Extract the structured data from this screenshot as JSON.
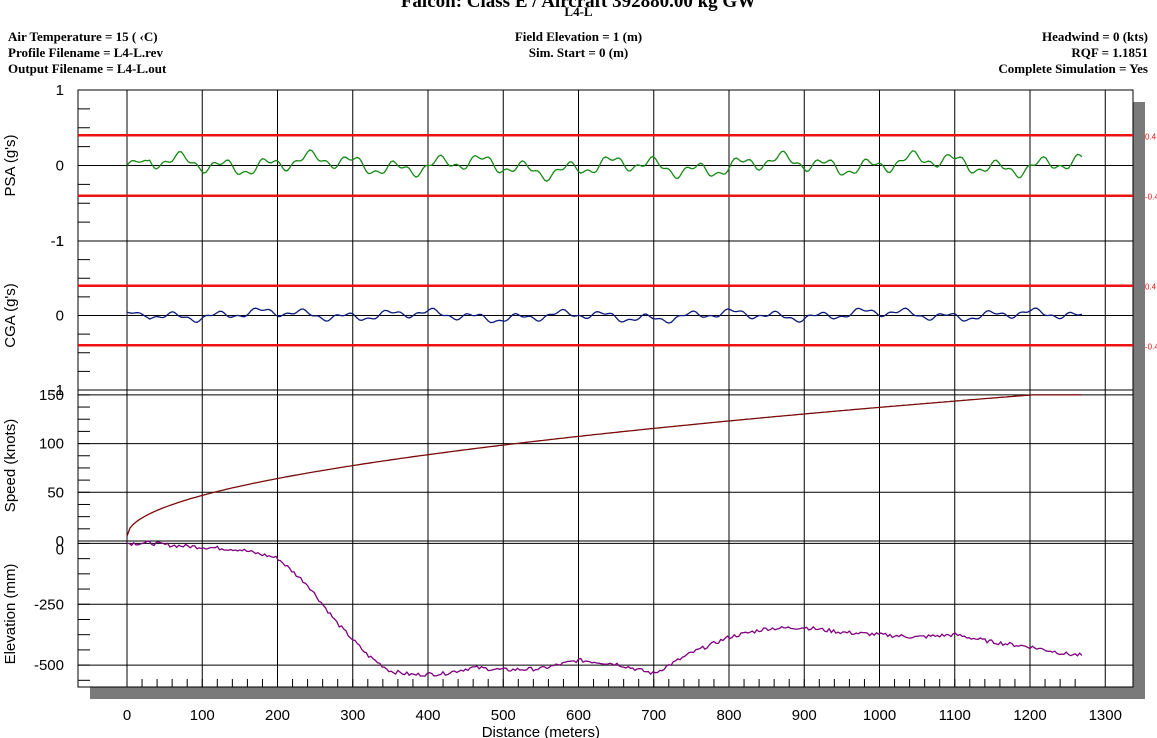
{
  "header": {
    "title": "Falcon: Class E / Aircraft 392880.00 kg GW",
    "subtitle": "L4-L",
    "air_temperature": "Air Temperature = 15 (  ‹C)",
    "profile_filename": "Profile Filename = L4-L.rev",
    "output_filename": "Output Filename = L4-L.out",
    "field_elevation": "Field Elevation = 1 (m)",
    "sim_start": "Sim. Start = 0 (m)",
    "headwind": "Headwind = 0 (kts)",
    "rqf": "RQF = 1.1851",
    "complete_simulation": "Complete Simulation = Yes"
  },
  "colors": {
    "psa": "#138a13",
    "cga": "#0a1a7a",
    "speed": "#7a0a0a",
    "elevation": "#800080",
    "limit": "#ee1111"
  },
  "chart_data": [
    {
      "type": "line",
      "ylabel": "PSA (g's)",
      "ylim": [
        -1,
        1
      ],
      "yticks": [
        "1",
        "0",
        "-1"
      ],
      "limit_lines": [
        0.4,
        -0.4
      ],
      "limit_labels": [
        "0.4",
        "-0.4"
      ],
      "series": [
        {
          "x_range": [
            0,
            1270
          ],
          "amplitude": 0.09,
          "description": "oscillating around 0 within about ±0.25"
        }
      ]
    },
    {
      "type": "line",
      "ylabel": "CGA (g's)",
      "ylim": [
        -1,
        1
      ],
      "yticks": [
        "1",
        "0",
        "-1"
      ],
      "limit_lines": [
        0.4,
        -0.4
      ],
      "limit_labels": [
        "0.4",
        "-0.4"
      ],
      "series": [
        {
          "x_range": [
            0,
            1270
          ],
          "amplitude": 0.05,
          "description": "oscillating around 0 within about ±0.12"
        }
      ]
    },
    {
      "type": "line",
      "ylabel": "Speed (knots)",
      "ylim": [
        0,
        155
      ],
      "yticks": [
        "150",
        "100",
        "50",
        "0"
      ],
      "series": [
        {
          "x": [
            0,
            10,
            50,
            100,
            200,
            300,
            400,
            500,
            600,
            700,
            800,
            900,
            1000,
            1100,
            1200,
            1270
          ],
          "values": [
            5,
            18,
            35,
            44,
            59,
            71,
            82,
            92,
            101,
            110,
            118,
            126,
            133,
            139,
            146,
            150
          ]
        }
      ]
    },
    {
      "type": "line",
      "ylabel": "Elevation (mm)",
      "ylim": [
        -590,
        10
      ],
      "yticks": [
        "0",
        "-250",
        "-500"
      ],
      "series": [
        {
          "x": [
            0,
            30,
            60,
            100,
            150,
            200,
            240,
            280,
            320,
            350,
            380,
            420,
            460,
            500,
            550,
            600,
            650,
            700,
            750,
            800,
            850,
            900,
            950,
            1000,
            1050,
            1100,
            1150,
            1200,
            1250,
            1270
          ],
          "values": [
            0,
            2,
            -8,
            -15,
            -25,
            -60,
            -170,
            -330,
            -460,
            -525,
            -540,
            -535,
            -510,
            -520,
            -515,
            -480,
            -495,
            -535,
            -450,
            -385,
            -350,
            -345,
            -365,
            -375,
            -385,
            -375,
            -405,
            -425,
            -455,
            -460
          ]
        }
      ]
    }
  ],
  "x_axis": {
    "label": "Distance (meters)",
    "ticks": [
      "0",
      "100",
      "200",
      "300",
      "400",
      "500",
      "600",
      "700",
      "800",
      "900",
      "1000",
      "1100",
      "1200",
      "1300"
    ]
  }
}
